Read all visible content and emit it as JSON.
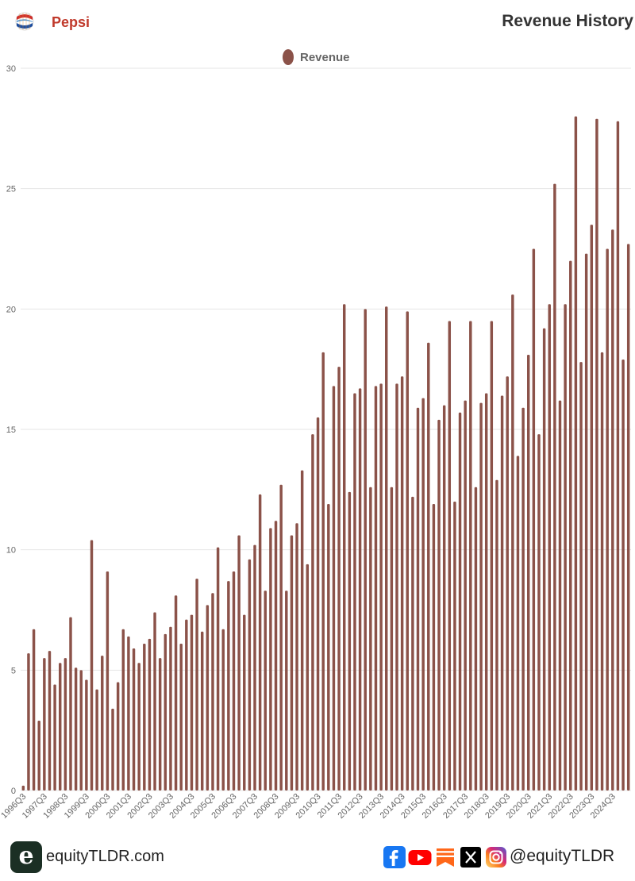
{
  "header": {
    "company": "Pepsi",
    "title": "Revenue History",
    "logo_icon": "pepsi-globe-icon"
  },
  "footer": {
    "brand_letter": "e",
    "brand_text": "equityTLDR.com",
    "handle": "@equityTLDR",
    "social_icons": [
      "facebook-icon",
      "youtube-icon",
      "substack-icon",
      "x-icon",
      "instagram-icon"
    ]
  },
  "chart_data": {
    "type": "bar",
    "title": "Revenue History",
    "legend": [
      "Revenue"
    ],
    "legend_position": "top-center",
    "ylim": [
      0,
      30
    ],
    "yticks": [
      0,
      5,
      10,
      15,
      20,
      25,
      30
    ],
    "grid": true,
    "bar_color": "#8b5249",
    "categories": [
      "1996Q3",
      "1996Q4",
      "1997Q1",
      "1997Q2",
      "1997Q3",
      "1997Q4",
      "1998Q1",
      "1998Q2",
      "1998Q3",
      "1998Q4",
      "1999Q1",
      "1999Q2",
      "1999Q3",
      "1999Q4",
      "2000Q1",
      "2000Q2",
      "2000Q3",
      "2000Q4",
      "2001Q1",
      "2001Q2",
      "2001Q3",
      "2001Q4",
      "2002Q1",
      "2002Q2",
      "2002Q3",
      "2002Q4",
      "2003Q1",
      "2003Q2",
      "2003Q3",
      "2003Q4",
      "2004Q1",
      "2004Q2",
      "2004Q3",
      "2004Q4",
      "2005Q1",
      "2005Q2",
      "2005Q3",
      "2005Q4",
      "2006Q1",
      "2006Q2",
      "2006Q3",
      "2006Q4",
      "2007Q1",
      "2007Q2",
      "2007Q3",
      "2007Q4",
      "2008Q1",
      "2008Q2",
      "2008Q3",
      "2008Q4",
      "2009Q1",
      "2009Q2",
      "2009Q3",
      "2009Q4",
      "2010Q1",
      "2010Q2",
      "2010Q3",
      "2010Q4",
      "2011Q1",
      "2011Q2",
      "2011Q3",
      "2011Q4",
      "2012Q1",
      "2012Q2",
      "2012Q3",
      "2012Q4",
      "2013Q1",
      "2013Q2",
      "2013Q3",
      "2013Q4",
      "2014Q1",
      "2014Q2",
      "2014Q3",
      "2014Q4",
      "2015Q1",
      "2015Q2",
      "2015Q3",
      "2015Q4",
      "2016Q1",
      "2016Q2",
      "2016Q3",
      "2016Q4",
      "2017Q1",
      "2017Q2",
      "2017Q3",
      "2017Q4",
      "2018Q1",
      "2018Q2",
      "2018Q3",
      "2018Q4",
      "2019Q1",
      "2019Q2",
      "2019Q3",
      "2019Q4",
      "2020Q1",
      "2020Q2",
      "2020Q3",
      "2020Q4",
      "2021Q1",
      "2021Q2",
      "2021Q3",
      "2021Q4",
      "2022Q1",
      "2022Q2",
      "2022Q3",
      "2022Q4",
      "2023Q1",
      "2023Q2",
      "2023Q3",
      "2023Q4",
      "2024Q1",
      "2024Q2",
      "2024Q3",
      "2024Q4",
      "2025Q1",
      "2025Q2"
    ],
    "x_tick_labels": [
      "1996Q3",
      "1997Q3",
      "1998Q3",
      "1999Q3",
      "2000Q3",
      "2001Q3",
      "2002Q3",
      "2003Q3",
      "2004Q3",
      "2005Q3",
      "2006Q3",
      "2007Q3",
      "2008Q3",
      "2009Q3",
      "2010Q3",
      "2011Q3",
      "2012Q3",
      "2013Q3",
      "2014Q3",
      "2015Q3",
      "2016Q3",
      "2017Q3",
      "2018Q3",
      "2019Q3",
      "2020Q3",
      "2021Q3",
      "2022Q3",
      "2023Q3",
      "2024Q3"
    ],
    "series": [
      {
        "name": "Revenue",
        "values": [
          0.2,
          5.7,
          6.7,
          2.9,
          5.5,
          5.8,
          4.4,
          5.3,
          5.5,
          7.2,
          5.1,
          5.0,
          4.6,
          10.4,
          4.2,
          5.6,
          9.1,
          3.4,
          4.5,
          6.7,
          6.4,
          5.9,
          5.3,
          6.1,
          6.3,
          7.4,
          5.5,
          6.5,
          6.8,
          8.1,
          6.1,
          7.1,
          7.3,
          8.8,
          6.6,
          7.7,
          8.2,
          10.1,
          6.7,
          8.7,
          9.1,
          10.6,
          7.3,
          9.6,
          10.2,
          12.3,
          8.3,
          10.9,
          11.2,
          12.7,
          8.3,
          10.6,
          11.1,
          13.3,
          9.4,
          14.8,
          15.5,
          18.2,
          11.9,
          16.8,
          17.6,
          20.2,
          12.4,
          16.5,
          16.7,
          20.0,
          12.6,
          16.8,
          16.9,
          20.1,
          12.6,
          16.9,
          17.2,
          19.9,
          12.2,
          15.9,
          16.3,
          18.6,
          11.9,
          15.4,
          16.0,
          19.5,
          12.0,
          15.7,
          16.2,
          19.5,
          12.6,
          16.1,
          16.5,
          19.5,
          12.9,
          16.4,
          17.2,
          20.6,
          13.9,
          15.9,
          18.1,
          22.5,
          14.8,
          19.2,
          20.2,
          25.2,
          16.2,
          20.2,
          22.0,
          28.0,
          17.8,
          22.3,
          23.5,
          27.9,
          18.2,
          22.5,
          23.3,
          27.8,
          17.9,
          22.7
        ]
      }
    ]
  }
}
